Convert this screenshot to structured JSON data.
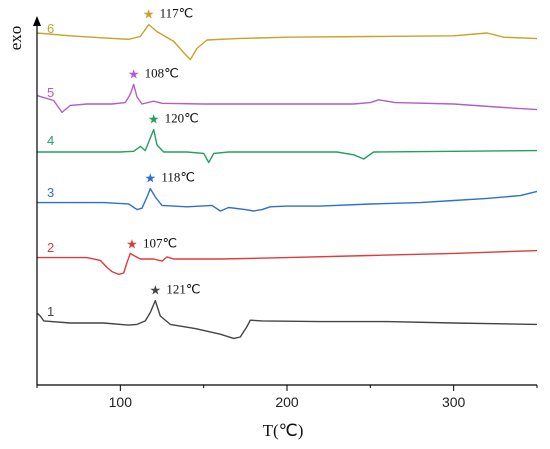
{
  "chart_data": {
    "type": "line",
    "title": "",
    "xlabel": "T(℃)",
    "ylabel": "exo",
    "xlim": [
      50,
      350
    ],
    "x_ticks": [
      100,
      200,
      300
    ],
    "y_ticks": [],
    "grid": false,
    "legend": "none",
    "series": [
      {
        "name": "6",
        "color": "#C9A227",
        "offset": 5,
        "peak_label": "117℃",
        "peak_x": 117,
        "points": [
          [
            50,
            0.1
          ],
          [
            70,
            0.06
          ],
          [
            90,
            0.03
          ],
          [
            105,
            0.01
          ],
          [
            112,
            0.05
          ],
          [
            117,
            0.22
          ],
          [
            122,
            0.12
          ],
          [
            127,
            0.05
          ],
          [
            132,
            -0.02
          ],
          [
            138,
            -0.18
          ],
          [
            142,
            -0.28
          ],
          [
            146,
            -0.12
          ],
          [
            152,
            0.0
          ],
          [
            170,
            0.02
          ],
          [
            200,
            0.04
          ],
          [
            250,
            0.05
          ],
          [
            300,
            0.06
          ],
          [
            320,
            0.1
          ],
          [
            330,
            0.04
          ],
          [
            350,
            0.02
          ]
        ]
      },
      {
        "name": "5",
        "color": "#B45CC8",
        "offset": 4,
        "peak_label": "108℃",
        "peak_x": 108,
        "points": [
          [
            50,
            0.12
          ],
          [
            60,
            0.05
          ],
          [
            65,
            -0.12
          ],
          [
            70,
            -0.02
          ],
          [
            80,
            0.0
          ],
          [
            95,
            0.0
          ],
          [
            103,
            0.02
          ],
          [
            106,
            0.14
          ],
          [
            108,
            0.28
          ],
          [
            110,
            0.1
          ],
          [
            113,
            0.0
          ],
          [
            120,
            0.04
          ],
          [
            125,
            0.01
          ],
          [
            150,
            0.0
          ],
          [
            200,
            0.0
          ],
          [
            240,
            0.0
          ],
          [
            250,
            0.02
          ],
          [
            255,
            0.06
          ],
          [
            265,
            0.02
          ],
          [
            300,
            0.0
          ],
          [
            330,
            -0.05
          ],
          [
            350,
            -0.08
          ]
        ]
      },
      {
        "name": "4",
        "color": "#21A05F",
        "offset": 3,
        "peak_label": "120℃",
        "peak_x": 120,
        "points": [
          [
            50,
            0.0
          ],
          [
            100,
            0.0
          ],
          [
            108,
            0.01
          ],
          [
            112,
            0.08
          ],
          [
            115,
            0.02
          ],
          [
            118,
            0.2
          ],
          [
            120,
            0.32
          ],
          [
            122,
            0.1
          ],
          [
            126,
            0.0
          ],
          [
            140,
            0.0
          ],
          [
            150,
            -0.02
          ],
          [
            153,
            -0.15
          ],
          [
            156,
            -0.02
          ],
          [
            165,
            0.0
          ],
          [
            200,
            0.0
          ],
          [
            230,
            0.0
          ],
          [
            240,
            -0.04
          ],
          [
            246,
            -0.1
          ],
          [
            252,
            0.0
          ],
          [
            300,
            0.01
          ],
          [
            350,
            0.02
          ]
        ]
      },
      {
        "name": "3",
        "color": "#2F6FD0",
        "offset": 2,
        "peak_label": "118℃",
        "peak_x": 118,
        "points": [
          [
            50,
            0.02
          ],
          [
            90,
            0.02
          ],
          [
            105,
            0.0
          ],
          [
            110,
            -0.08
          ],
          [
            113,
            -0.06
          ],
          [
            116,
            0.1
          ],
          [
            118,
            0.22
          ],
          [
            121,
            0.1
          ],
          [
            125,
            -0.02
          ],
          [
            140,
            -0.04
          ],
          [
            155,
            -0.02
          ],
          [
            160,
            -0.1
          ],
          [
            165,
            -0.05
          ],
          [
            175,
            -0.08
          ],
          [
            180,
            -0.1
          ],
          [
            185,
            -0.08
          ],
          [
            190,
            -0.04
          ],
          [
            200,
            -0.03
          ],
          [
            220,
            -0.03
          ],
          [
            250,
            0.0
          ],
          [
            280,
            0.02
          ],
          [
            300,
            0.05
          ],
          [
            320,
            0.08
          ],
          [
            340,
            0.12
          ],
          [
            350,
            0.18
          ]
        ]
      },
      {
        "name": "2",
        "color": "#E03A3A",
        "offset": 1,
        "peak_label": "107℃",
        "peak_x": 107,
        "points": [
          [
            50,
            0.02
          ],
          [
            80,
            0.02
          ],
          [
            88,
            -0.02
          ],
          [
            92,
            -0.12
          ],
          [
            95,
            -0.18
          ],
          [
            99,
            -0.22
          ],
          [
            102,
            -0.2
          ],
          [
            104,
            -0.05
          ],
          [
            106,
            0.08
          ],
          [
            108,
            0.05
          ],
          [
            112,
            0.0
          ],
          [
            120,
            0.0
          ],
          [
            125,
            -0.03
          ],
          [
            128,
            0.03
          ],
          [
            132,
            0.0
          ],
          [
            160,
            0.0
          ],
          [
            200,
            0.02
          ],
          [
            250,
            0.05
          ],
          [
            300,
            0.08
          ],
          [
            350,
            0.12
          ]
        ]
      },
      {
        "name": "1",
        "color": "#444444",
        "offset": 0,
        "peak_label": "121℃",
        "peak_x": 121,
        "points": [
          [
            50,
            0.14
          ],
          [
            52,
            0.1
          ],
          [
            54,
            0.03
          ],
          [
            70,
            0.0
          ],
          [
            90,
            0.0
          ],
          [
            105,
            -0.03
          ],
          [
            110,
            -0.02
          ],
          [
            115,
            0.03
          ],
          [
            118,
            0.15
          ],
          [
            121,
            0.32
          ],
          [
            124,
            0.1
          ],
          [
            130,
            -0.02
          ],
          [
            145,
            -0.08
          ],
          [
            160,
            -0.16
          ],
          [
            168,
            -0.22
          ],
          [
            172,
            -0.2
          ],
          [
            176,
            -0.05
          ],
          [
            178,
            0.04
          ],
          [
            185,
            0.03
          ],
          [
            220,
            0.02
          ],
          [
            260,
            0.02
          ],
          [
            300,
            0.0
          ],
          [
            350,
            -0.02
          ]
        ]
      }
    ]
  }
}
